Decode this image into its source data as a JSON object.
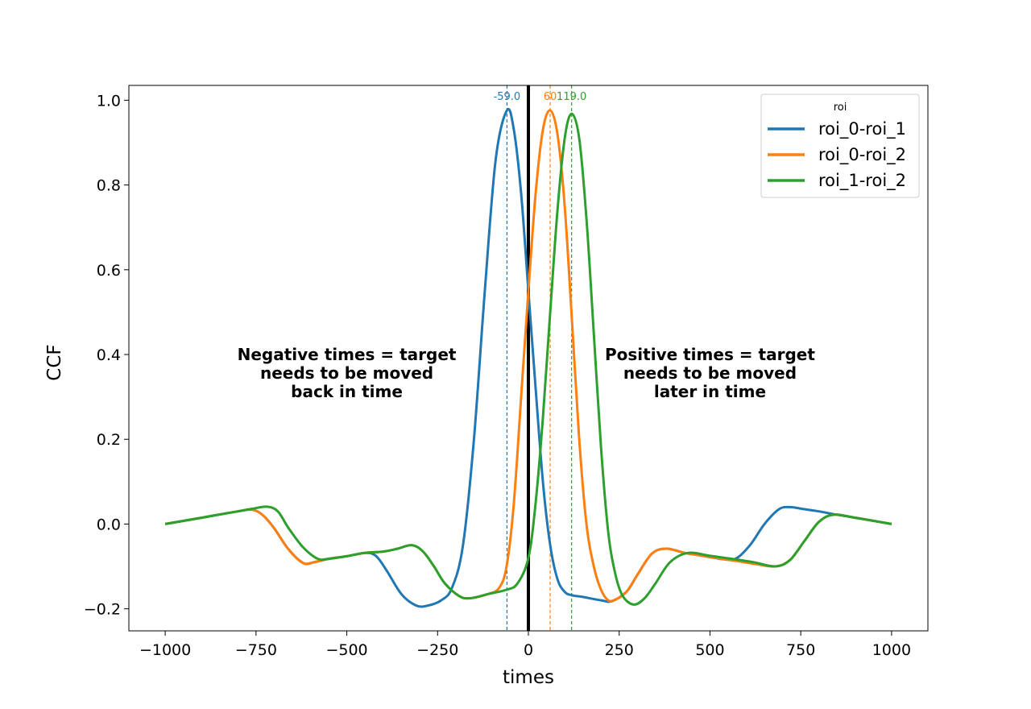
{
  "chart_data": {
    "type": "line",
    "title": "",
    "xlabel": "times",
    "ylabel": "CCF",
    "xlim": [
      -1100,
      1100
    ],
    "ylim": [
      -0.252,
      1.035
    ],
    "xticks": [
      -1000,
      -750,
      -500,
      -250,
      0,
      250,
      500,
      750,
      1000
    ],
    "xtick_labels": [
      "−1000",
      "−750",
      "−500",
      "−250",
      "0",
      "250",
      "500",
      "750",
      "1000"
    ],
    "yticks": [
      -0.2,
      0.0,
      0.2,
      0.4,
      0.6,
      0.8,
      1.0
    ],
    "ytick_labels": [
      "−0.2",
      "0.0",
      "0.2",
      "0.4",
      "0.6",
      "0.8",
      "1.0"
    ],
    "grid": false,
    "legend": {
      "title": "roi",
      "placement": "top-right"
    },
    "zero_line": {
      "x": 0,
      "color": "#000000"
    },
    "series": [
      {
        "name": "roi_0-roi_1",
        "color": "#1f77b4",
        "peak": {
          "x": -59.0,
          "label": "-59.0"
        },
        "points": [
          [
            -1000,
            0.0
          ],
          [
            -900,
            0.015
          ],
          [
            -800,
            0.03
          ],
          [
            -760,
            0.034
          ],
          [
            -730,
            0.02
          ],
          [
            -700,
            -0.01
          ],
          [
            -660,
            -0.06
          ],
          [
            -620,
            -0.092
          ],
          [
            -590,
            -0.09
          ],
          [
            -550,
            -0.082
          ],
          [
            -500,
            -0.076
          ],
          [
            -450,
            -0.068
          ],
          [
            -420,
            -0.075
          ],
          [
            -390,
            -0.11
          ],
          [
            -350,
            -0.165
          ],
          [
            -310,
            -0.192
          ],
          [
            -280,
            -0.193
          ],
          [
            -240,
            -0.18
          ],
          [
            -210,
            -0.15
          ],
          [
            -180,
            -0.05
          ],
          [
            -150,
            0.2
          ],
          [
            -120,
            0.55
          ],
          [
            -90,
            0.86
          ],
          [
            -59,
            0.976
          ],
          [
            -40,
            0.93
          ],
          [
            -20,
            0.78
          ],
          [
            0,
            0.55
          ],
          [
            20,
            0.32
          ],
          [
            40,
            0.1
          ],
          [
            60,
            -0.05
          ],
          [
            80,
            -0.13
          ],
          [
            100,
            -0.16
          ],
          [
            120,
            -0.168
          ],
          [
            150,
            -0.172
          ],
          [
            200,
            -0.18
          ],
          [
            230,
            -0.182
          ],
          [
            270,
            -0.16
          ],
          [
            300,
            -0.12
          ],
          [
            340,
            -0.07
          ],
          [
            380,
            -0.058
          ],
          [
            430,
            -0.068
          ],
          [
            480,
            -0.075
          ],
          [
            530,
            -0.082
          ],
          [
            570,
            -0.082
          ],
          [
            610,
            -0.05
          ],
          [
            650,
            0.0
          ],
          [
            690,
            0.035
          ],
          [
            720,
            0.04
          ],
          [
            760,
            0.035
          ],
          [
            800,
            0.03
          ],
          [
            850,
            0.022
          ],
          [
            900,
            0.015
          ],
          [
            1000,
            0.0
          ]
        ]
      },
      {
        "name": "roi_0-roi_2",
        "color": "#ff7f0e",
        "peak": {
          "x": 60,
          "label": "60"
        },
        "points": [
          [
            -1000,
            0.0
          ],
          [
            -900,
            0.015
          ],
          [
            -800,
            0.03
          ],
          [
            -760,
            0.034
          ],
          [
            -730,
            0.02
          ],
          [
            -700,
            -0.01
          ],
          [
            -660,
            -0.06
          ],
          [
            -620,
            -0.092
          ],
          [
            -590,
            -0.09
          ],
          [
            -550,
            -0.082
          ],
          [
            -500,
            -0.076
          ],
          [
            -450,
            -0.068
          ],
          [
            -400,
            -0.065
          ],
          [
            -360,
            -0.058
          ],
          [
            -320,
            -0.05
          ],
          [
            -290,
            -0.065
          ],
          [
            -260,
            -0.1
          ],
          [
            -230,
            -0.14
          ],
          [
            -190,
            -0.17
          ],
          [
            -160,
            -0.175
          ],
          [
            -110,
            -0.165
          ],
          [
            -80,
            -0.15
          ],
          [
            -60,
            -0.1
          ],
          [
            -40,
            0.05
          ],
          [
            -20,
            0.3
          ],
          [
            0,
            0.55
          ],
          [
            20,
            0.78
          ],
          [
            40,
            0.93
          ],
          [
            60,
            0.976
          ],
          [
            80,
            0.92
          ],
          [
            100,
            0.75
          ],
          [
            120,
            0.48
          ],
          [
            140,
            0.2
          ],
          [
            160,
            0.0
          ],
          [
            180,
            -0.1
          ],
          [
            200,
            -0.155
          ],
          [
            220,
            -0.18
          ],
          [
            240,
            -0.178
          ],
          [
            270,
            -0.16
          ],
          [
            300,
            -0.12
          ],
          [
            340,
            -0.07
          ],
          [
            380,
            -0.058
          ],
          [
            430,
            -0.068
          ],
          [
            480,
            -0.075
          ],
          [
            530,
            -0.082
          ],
          [
            580,
            -0.088
          ],
          [
            630,
            -0.095
          ],
          [
            680,
            -0.1
          ],
          [
            720,
            -0.085
          ],
          [
            760,
            -0.04
          ],
          [
            800,
            0.005
          ],
          [
            840,
            0.022
          ],
          [
            900,
            0.015
          ],
          [
            1000,
            0.0
          ]
        ]
      },
      {
        "name": "roi_1-roi_2",
        "color": "#2ca02c",
        "peak": {
          "x": 119.0,
          "label": "119.0"
        },
        "points": [
          [
            -1000,
            0.0
          ],
          [
            -900,
            0.015
          ],
          [
            -800,
            0.03
          ],
          [
            -760,
            0.036
          ],
          [
            -720,
            0.041
          ],
          [
            -690,
            0.03
          ],
          [
            -660,
            -0.01
          ],
          [
            -620,
            -0.055
          ],
          [
            -580,
            -0.082
          ],
          [
            -550,
            -0.082
          ],
          [
            -500,
            -0.076
          ],
          [
            -450,
            -0.068
          ],
          [
            -400,
            -0.065
          ],
          [
            -360,
            -0.058
          ],
          [
            -320,
            -0.05
          ],
          [
            -290,
            -0.065
          ],
          [
            -260,
            -0.1
          ],
          [
            -230,
            -0.14
          ],
          [
            -190,
            -0.17
          ],
          [
            -160,
            -0.175
          ],
          [
            -110,
            -0.165
          ],
          [
            -60,
            -0.155
          ],
          [
            -30,
            -0.14
          ],
          [
            0,
            -0.08
          ],
          [
            20,
            0.05
          ],
          [
            40,
            0.25
          ],
          [
            60,
            0.5
          ],
          [
            80,
            0.74
          ],
          [
            100,
            0.91
          ],
          [
            119,
            0.968
          ],
          [
            140,
            0.91
          ],
          [
            160,
            0.72
          ],
          [
            180,
            0.45
          ],
          [
            200,
            0.18
          ],
          [
            220,
            -0.02
          ],
          [
            240,
            -0.12
          ],
          [
            260,
            -0.17
          ],
          [
            290,
            -0.19
          ],
          [
            320,
            -0.175
          ],
          [
            350,
            -0.14
          ],
          [
            390,
            -0.09
          ],
          [
            440,
            -0.068
          ],
          [
            500,
            -0.075
          ],
          [
            560,
            -0.082
          ],
          [
            620,
            -0.09
          ],
          [
            680,
            -0.1
          ],
          [
            720,
            -0.085
          ],
          [
            760,
            -0.04
          ],
          [
            800,
            0.005
          ],
          [
            840,
            0.022
          ],
          [
            900,
            0.015
          ],
          [
            1000,
            0.0
          ]
        ]
      }
    ],
    "annotations": [
      {
        "lines": [
          "Negative times = target",
          "needs to be moved",
          "back in time"
        ],
        "x": -500,
        "y": 0.4
      },
      {
        "lines": [
          "Positive times = target",
          "needs to be moved",
          "later in time"
        ],
        "x": 500,
        "y": 0.4
      }
    ]
  }
}
